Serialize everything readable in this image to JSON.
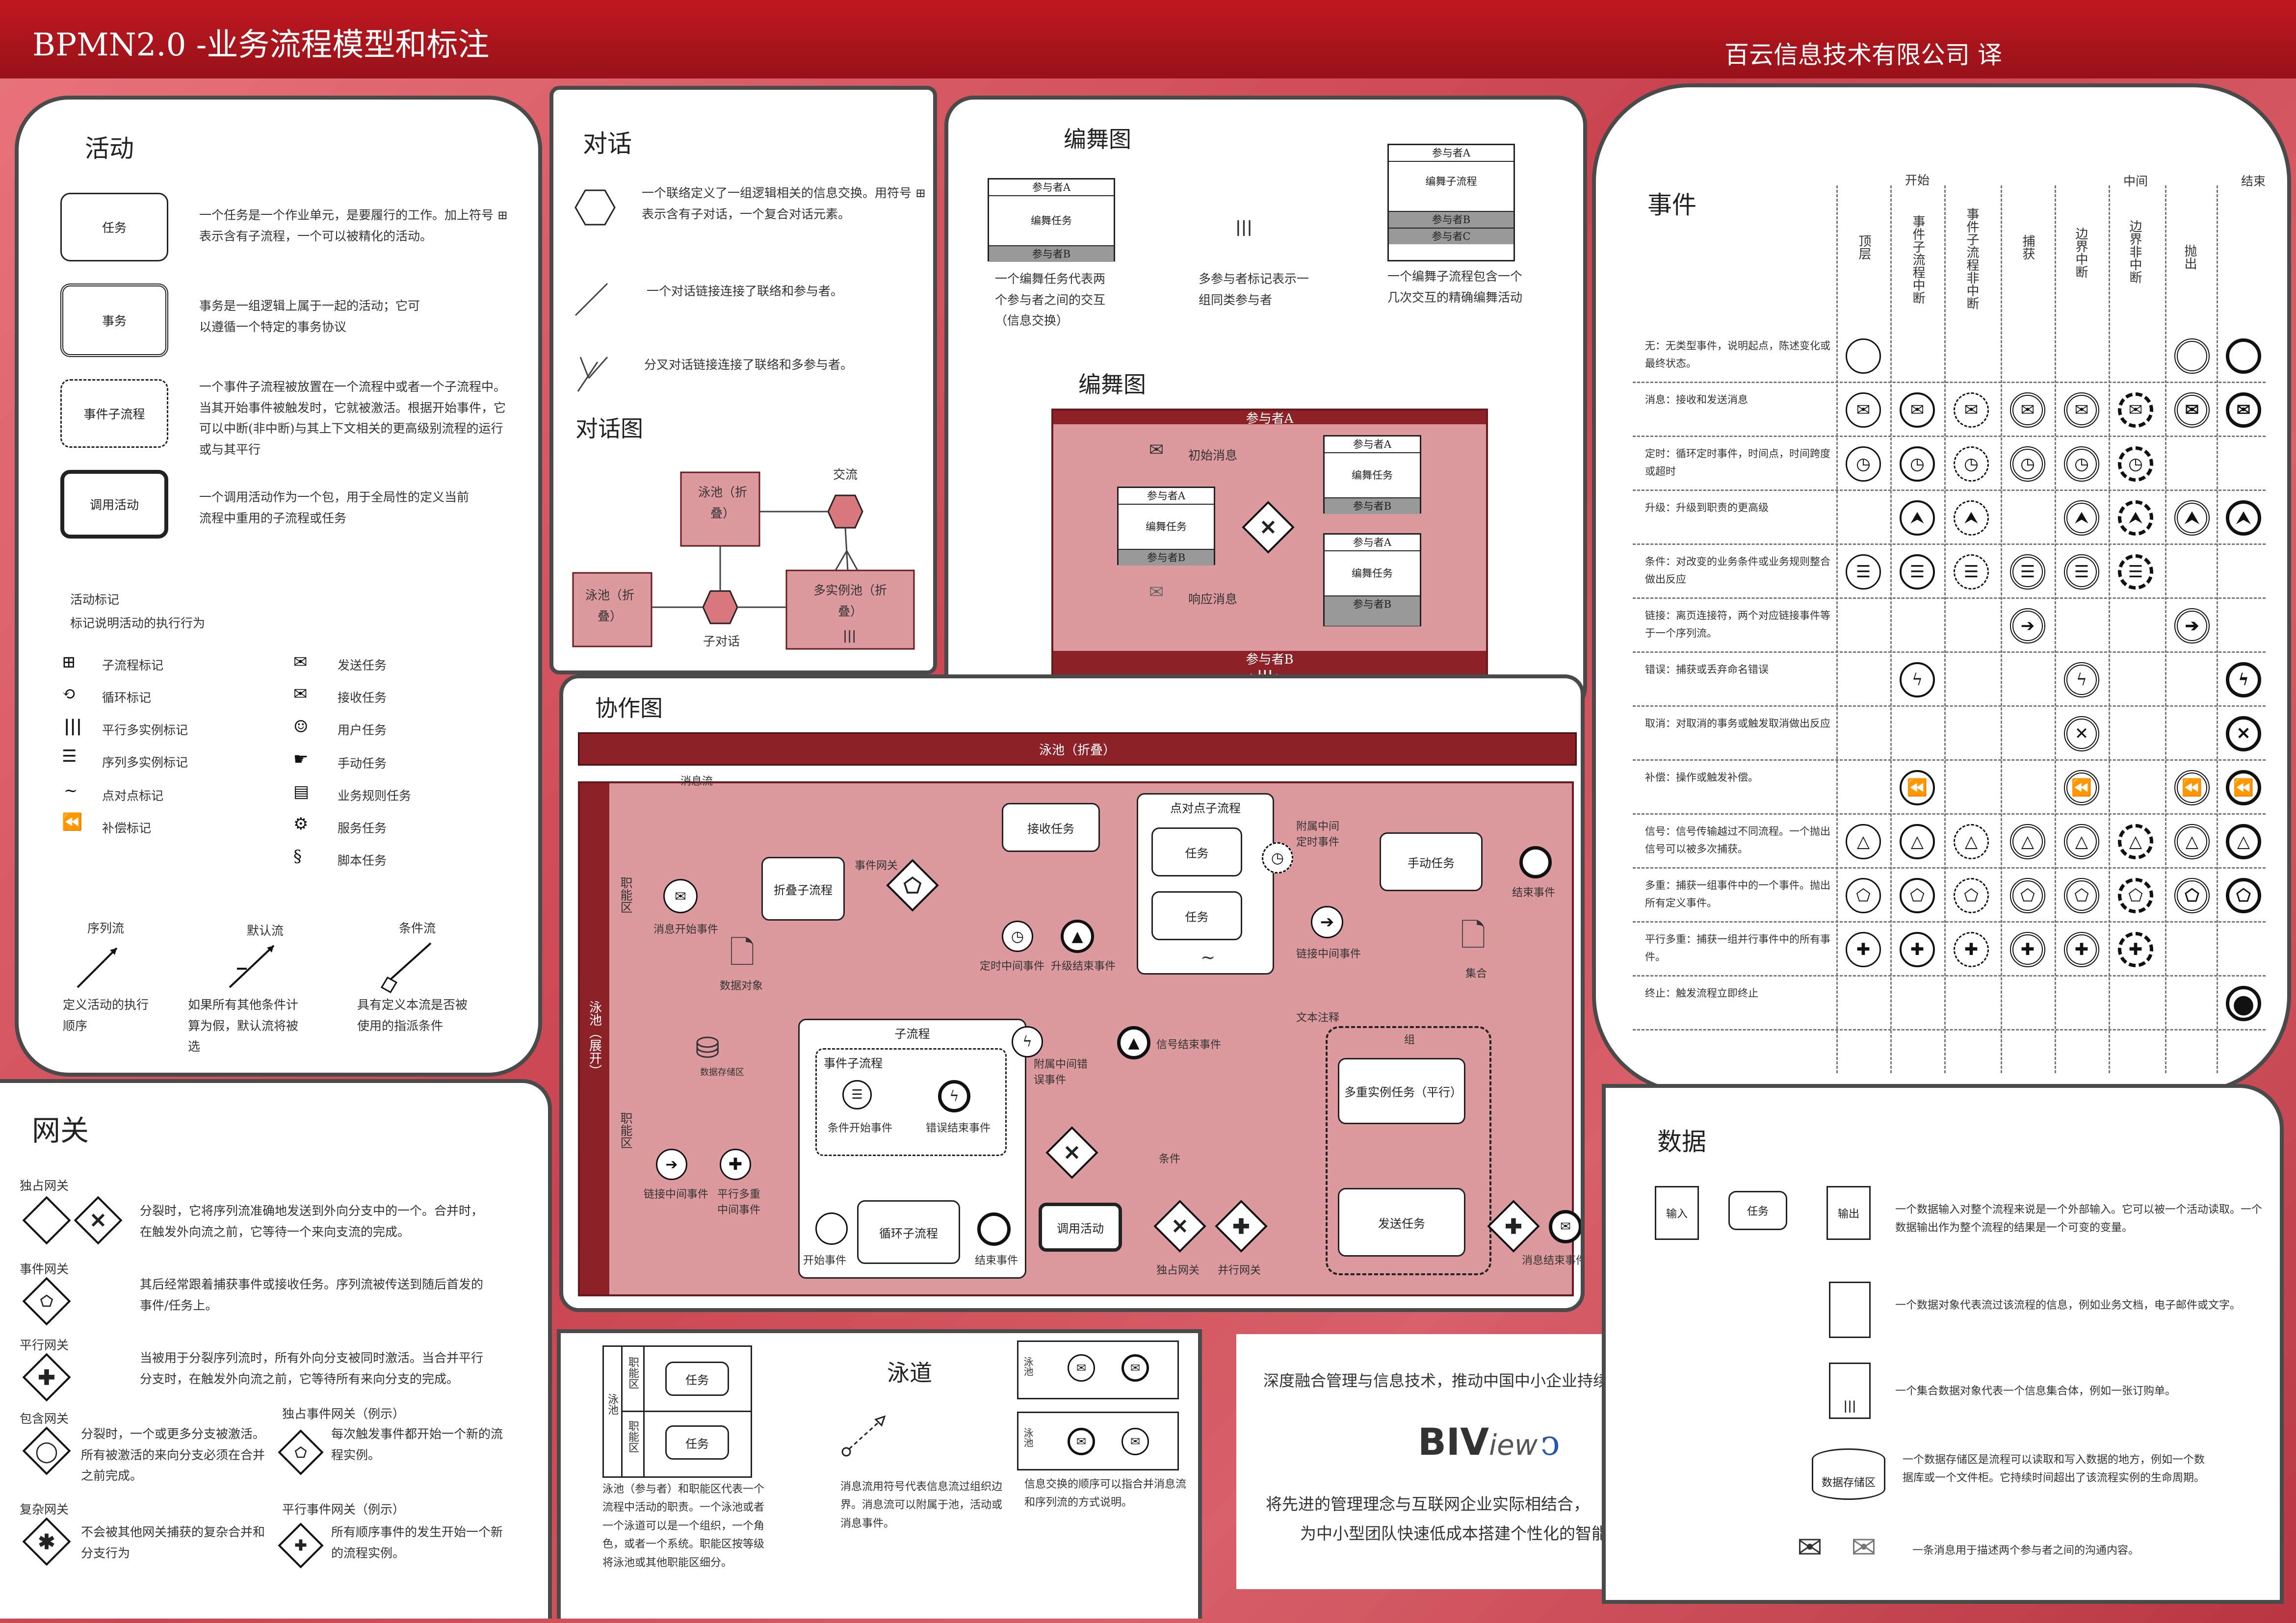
{
  "header": {
    "title": "BPMN2.0 -业务流程模型和标注",
    "right": "百云信息技术有限公司 译"
  },
  "activities": {
    "title": "活动",
    "items": [
      {
        "label": "任务",
        "desc": "一个任务是一个作业单元，是要履行的工作。加上符号 ⊞ 表示含有子流程，一个可以被精化的活动。"
      },
      {
        "label": "事务",
        "desc": "事务是一组逻辑上属于一起的活动；它可以遵循一个特定的事务协议"
      },
      {
        "label": "事件子流程",
        "desc": "一个事件子流程被放置在一个流程中或者一个子流程中。当其开始事件被触发时，它就被激活。根据开始事件，它可以中断(非中断)与其上下文相关的更高级别流程的运行或与其平行"
      },
      {
        "label": "调用活动",
        "desc": "一个调用活动作为一个包，用于全局性的定义当前流程中重用的子流程或任务"
      }
    ],
    "markers_title": "活动标记",
    "markers_sub": "标记说明活动的执行行为",
    "markers": [
      "子流程标记",
      "循环标记",
      "平行多实例标记",
      "序列多实例标记",
      "点对点标记",
      "补偿标记"
    ],
    "task_types": [
      "发送任务",
      "接收任务",
      "用户任务",
      "手动任务",
      "业务规则任务",
      "服务任务",
      "脚本任务"
    ],
    "flows": [
      {
        "name": "序列流",
        "desc": "定义活动的执行顺序"
      },
      {
        "name": "默认流",
        "desc": "如果所有其他条件计算为假，默认流将被选"
      },
      {
        "name": "条件流",
        "desc": "具有定义本流是否被使用的指派条件"
      }
    ]
  },
  "conversation": {
    "title": "对话",
    "items": [
      "一个联络定义了一组逻辑相关的信息交换。用符号 ⊞ 表示含有子对话，一个复合对话元素。",
      "一个对话链接连接了联络和参与者。",
      "分叉对话链接连接了联络和多参与者。"
    ],
    "diagram_title": "对话图",
    "pool1": "泳池（折叠）",
    "pool2": "泳池（折叠）",
    "pool3": "多实例池（折叠）",
    "exchange": "交流",
    "subconv": "子对话"
  },
  "choreography": {
    "title": "编舞图",
    "participant_a": "参与者A",
    "participant_b": "参与者B",
    "participant_c": "参与者C",
    "task": "编舞任务",
    "subprocess": "编舞子流程",
    "desc1": "一个编舞任务代表两个参与者之间的交互（信息交换）",
    "desc2": "多参与者标记表示一组同类参与者",
    "desc3": "一个编舞子流程包含一个几次交互的精确编舞活动",
    "diagram_title": "编舞图",
    "init_msg": "初始消息",
    "resp_msg": "响应消息"
  },
  "events": {
    "title": "事件",
    "groups": [
      "开始",
      "中间",
      "结束"
    ],
    "columns": [
      "顶层",
      "事件子流程中断",
      "事件子流程非中断",
      "捕获",
      "边界中断",
      "边界非中断",
      "抛出"
    ],
    "rows": [
      {
        "label": "无：无类型事件，说明起点，陈述变化或最终状态。",
        "icon": ""
      },
      {
        "label": "消息：接收和发送消息",
        "icon": "✉"
      },
      {
        "label": "定时：循环定时事件，时间点，时间跨度或超时",
        "icon": "◷"
      },
      {
        "label": "升级：升级到职责的更高级",
        "icon": "⮝"
      },
      {
        "label": "条件：对改变的业务条件或业务规则整合做出反应",
        "icon": "☰"
      },
      {
        "label": "链接：离页连接符，两个对应链接事件等于一个序列流。",
        "icon": "➔"
      },
      {
        "label": "错误：捕获或丢弃命名错误",
        "icon": "ϟ"
      },
      {
        "label": "取消：对取消的事务或触发取消做出反应",
        "icon": "✕"
      },
      {
        "label": "补偿：操作或触发补偿。",
        "icon": "⏪"
      },
      {
        "label": "信号：信号传输越过不同流程。一个抛出信号可以被多次捕获。",
        "icon": "△"
      },
      {
        "label": "多重：捕获一组事件中的一个事件。抛出所有定义事件。",
        "icon": "⬠"
      },
      {
        "label": "平行多重：捕获一组并行事件中的所有事件。",
        "icon": "✚"
      },
      {
        "label": "终止：触发流程立即终止",
        "icon": "●"
      }
    ]
  },
  "collaboration": {
    "title": "协作图",
    "pool_collapsed": "泳池（折叠）",
    "pool_expanded": "泳池（展开）",
    "lane": "职能区",
    "labels": {
      "msg_flow": "消息流",
      "msg_start": "消息开始事件",
      "data_obj": "数据对象",
      "collapsed_sub": "折叠子流程",
      "event_gw": "事件网关",
      "receive_task": "接收任务",
      "timer": "定时中间事件",
      "escalation_end": "升级结束事件",
      "adhoc": "点对点子流程",
      "task": "任务",
      "attached_timer": "附属中间定时事件",
      "manual_task": "手动任务",
      "end_event": "结束事件",
      "link_event": "链接中间事件",
      "collection": "集合",
      "datastore": "数据存储区",
      "subprocess": "子流程",
      "event_sub": "事件子流程",
      "cond_start": "条件开始事件",
      "error_end": "错误结束事件",
      "attached_error": "附属中间错误事件",
      "signal_end": "信号结束事件",
      "text_note": "文本注释",
      "group": "组",
      "multi_task": "多重实例任务（平行）",
      "send_task": "发送任务",
      "msg_end": "消息结束事件",
      "link_int": "链接中间事件",
      "par_multi": "平行多重中间事件",
      "loop_sub": "循环子流程",
      "start_event": "开始事件",
      "end_event2": "结束事件",
      "call_activity": "调用活动",
      "condition": "条件",
      "excl_gw": "独占网关",
      "par_gw": "并行网关"
    }
  },
  "gateways": {
    "title": "网关",
    "items": [
      {
        "name": "独占网关",
        "desc": "分裂时，它将序列流准确地发送到外向分支中的一个。合并时，在触发外向流之前，它等待一个来向支流的完成。"
      },
      {
        "name": "事件网关",
        "desc": "其后经常跟着捕获事件或接收任务。序列流被传送到随后首发的事件/任务上。"
      },
      {
        "name": "平行网关",
        "desc": "当被用于分裂序列流时，所有外向分支被同时激活。当合并平行分支时，在触发外向流之前，它等待所有来向分支的完成。"
      },
      {
        "name": "包含网关",
        "desc": "分裂时，一个或更多分支被激活。所有被激活的来向分支必须在合并之前完成。"
      },
      {
        "name": "复杂网关",
        "desc": "不会被其他网关捕获的复杂合并和分支行为"
      }
    ],
    "ex1_title": "独占事件网关（例示）",
    "ex1_desc": "每次触发事件都开始一个新的流程实例。",
    "ex2_title": "平行事件网关（例示）",
    "ex2_desc": "所有顺序事件的发生开始一个新的流程实例。"
  },
  "swimlanes": {
    "title": "泳道",
    "pool": "泳池",
    "lane1": "职能区",
    "lane2": "职能区",
    "task1": "任务",
    "task2": "任务",
    "desc1": "泳池（参与者）和职能区代表一个流程中活动的职责。一个泳池或者一个泳道可以是一个组织，一个角色，或者一个系统。职能区按等级将泳池或其他职能区细分。",
    "desc2": "消息流用符号代表信息流过组织边界。消息流可以附属于池，活动或消息事件。",
    "desc3": "信息交换的顺序可以指合并消息流和序列流的方式说明。"
  },
  "promo": {
    "line1": "深度融合管理与信息技术，推动中国中小企业持续成长",
    "logo_main": "BIV",
    "logo_sub": "iew",
    "line2": "将先进的管理理念与互联网企业实际相结合，",
    "line3": "为中小型团队快速低成本搭建个性化的智能信息化管理平台。"
  },
  "data": {
    "title": "数据",
    "input": "输入",
    "task": "任务",
    "output": "输出",
    "datastore": "数据存储区",
    "desc1": "一个数据输入对整个流程来说是一个外部输入。它可以被一个活动读取。一个数据输出作为整个流程的结果是一个可变的变量。",
    "desc2": "一个数据对象代表流过该流程的信息，例如业务文档，电子邮件或文字。",
    "desc3": "一个集合数据对象代表一个信息集合体，例如一张订购单。",
    "desc4": "一个数据存储区是流程可以读取和写入数据的地方，例如一个数据库或一个文件柜。它持续时间超出了该流程实例的生命周期。",
    "desc5": "一条消息用于描述两个参与者之间的沟通内容。"
  }
}
